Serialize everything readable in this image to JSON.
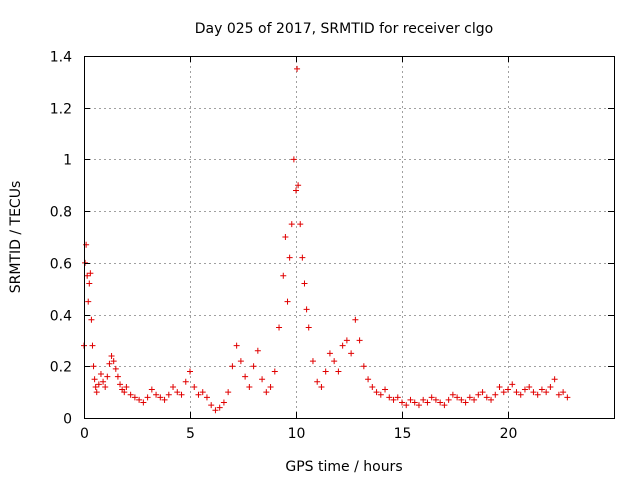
{
  "chart_data": {
    "type": "scatter",
    "title": "Day 025 of 2017, SRMTID for receiver clgo",
    "xlabel": "GPS time / hours",
    "ylabel": "SRMTID / TECUs",
    "xlim": [
      0,
      25
    ],
    "ylim": [
      0,
      1.4
    ],
    "xticks": [
      0,
      5,
      10,
      15,
      20
    ],
    "yticks": [
      0,
      0.2,
      0.4,
      0.6,
      0.8,
      1,
      1.2,
      1.4
    ],
    "xtick_labels": [
      "0",
      "5",
      "10",
      "15",
      "20"
    ],
    "ytick_labels": [
      "0",
      "0.2",
      "0.4",
      "0.6",
      "0.8",
      "1",
      "1.2",
      "1.4"
    ],
    "grid": true,
    "marker": "plus",
    "color": "#e00000",
    "series": [
      {
        "name": "SRMTID",
        "x": [
          0.0,
          0.05,
          0.1,
          0.15,
          0.2,
          0.25,
          0.3,
          0.35,
          0.4,
          0.45,
          0.5,
          0.55,
          0.6,
          0.7,
          0.8,
          0.9,
          1.0,
          1.1,
          1.2,
          1.3,
          1.4,
          1.5,
          1.6,
          1.7,
          1.8,
          1.9,
          2.0,
          2.2,
          2.4,
          2.6,
          2.8,
          3.0,
          3.2,
          3.4,
          3.6,
          3.8,
          4.0,
          4.2,
          4.4,
          4.6,
          4.8,
          5.0,
          5.2,
          5.4,
          5.6,
          5.8,
          6.0,
          6.2,
          6.4,
          6.6,
          6.8,
          7.0,
          7.2,
          7.4,
          7.6,
          7.8,
          8.0,
          8.2,
          8.4,
          8.6,
          8.8,
          9.0,
          9.2,
          9.4,
          9.5,
          9.6,
          9.7,
          9.8,
          9.9,
          10.0,
          10.05,
          10.1,
          10.2,
          10.3,
          10.4,
          10.5,
          10.6,
          10.8,
          11.0,
          11.2,
          11.4,
          11.6,
          11.8,
          12.0,
          12.2,
          12.4,
          12.6,
          12.8,
          13.0,
          13.2,
          13.4,
          13.6,
          13.8,
          14.0,
          14.2,
          14.4,
          14.6,
          14.8,
          15.0,
          15.2,
          15.4,
          15.6,
          15.8,
          16.0,
          16.2,
          16.4,
          16.6,
          16.8,
          17.0,
          17.2,
          17.4,
          17.6,
          17.8,
          18.0,
          18.2,
          18.4,
          18.6,
          18.8,
          19.0,
          19.2,
          19.4,
          19.6,
          19.8,
          20.0,
          20.2,
          20.4,
          20.6,
          20.8,
          21.0,
          21.2,
          21.4,
          21.6,
          21.8,
          22.0,
          22.2,
          22.4,
          22.6,
          22.8
        ],
        "y": [
          0.28,
          0.6,
          0.67,
          0.55,
          0.45,
          0.52,
          0.56,
          0.38,
          0.28,
          0.2,
          0.15,
          0.12,
          0.1,
          0.13,
          0.17,
          0.14,
          0.12,
          0.16,
          0.21,
          0.24,
          0.22,
          0.19,
          0.16,
          0.13,
          0.11,
          0.1,
          0.12,
          0.09,
          0.08,
          0.07,
          0.06,
          0.08,
          0.11,
          0.09,
          0.08,
          0.07,
          0.09,
          0.12,
          0.1,
          0.09,
          0.14,
          0.18,
          0.12,
          0.09,
          0.1,
          0.08,
          0.05,
          0.03,
          0.04,
          0.06,
          0.1,
          0.2,
          0.28,
          0.22,
          0.16,
          0.12,
          0.2,
          0.26,
          0.15,
          0.1,
          0.12,
          0.18,
          0.35,
          0.55,
          0.7,
          0.45,
          0.62,
          0.75,
          1.0,
          0.88,
          1.35,
          0.9,
          0.75,
          0.62,
          0.52,
          0.42,
          0.35,
          0.22,
          0.14,
          0.12,
          0.18,
          0.25,
          0.22,
          0.18,
          0.28,
          0.3,
          0.25,
          0.38,
          0.3,
          0.2,
          0.15,
          0.12,
          0.1,
          0.09,
          0.11,
          0.08,
          0.07,
          0.08,
          0.06,
          0.05,
          0.07,
          0.06,
          0.05,
          0.07,
          0.06,
          0.08,
          0.07,
          0.06,
          0.05,
          0.07,
          0.09,
          0.08,
          0.07,
          0.06,
          0.08,
          0.07,
          0.09,
          0.1,
          0.08,
          0.07,
          0.09,
          0.12,
          0.1,
          0.11,
          0.13,
          0.1,
          0.09,
          0.11,
          0.12,
          0.1,
          0.09,
          0.11,
          0.1,
          0.12,
          0.15,
          0.09,
          0.1,
          0.08
        ]
      }
    ]
  }
}
